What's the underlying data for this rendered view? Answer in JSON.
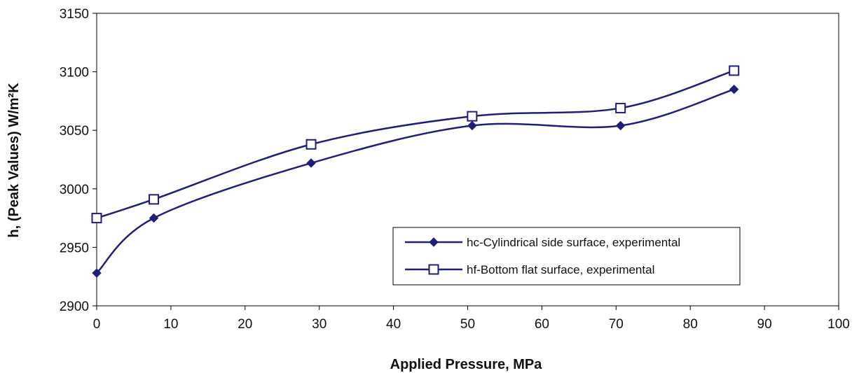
{
  "chart_data": {
    "type": "line",
    "xlabel": "Applied Pressure, MPa",
    "ylabel": "h, (Peak Values) W/m²K",
    "xlim": [
      0,
      100
    ],
    "ylim": [
      2900,
      3150
    ],
    "xticks": [
      "0",
      "10",
      "20",
      "30",
      "40",
      "50",
      "60",
      "70",
      "80",
      "90",
      "100"
    ],
    "yticks": [
      "2900",
      "2950",
      "3000",
      "3050",
      "3100",
      "3150"
    ],
    "grid": false,
    "smooth": true,
    "legend_position": "bottom-right",
    "series": [
      {
        "name": "hc-Cylindrical side surface, experimental",
        "marker": "filled-diamond",
        "color": "#1f1f7a",
        "points": [
          [
            0,
            2928
          ],
          [
            7.7,
            2975
          ],
          [
            28.9,
            3022
          ],
          [
            50.6,
            3054
          ],
          [
            70.6,
            3054
          ],
          [
            85.9,
            3085
          ]
        ]
      },
      {
        "name": "hf-Bottom flat surface, experimental",
        "marker": "open-square",
        "color": "#1f1f7a",
        "points": [
          [
            0,
            2975
          ],
          [
            7.7,
            2991
          ],
          [
            28.9,
            3038
          ],
          [
            50.6,
            3062
          ],
          [
            70.6,
            3069
          ],
          [
            85.9,
            3101
          ]
        ]
      }
    ]
  }
}
